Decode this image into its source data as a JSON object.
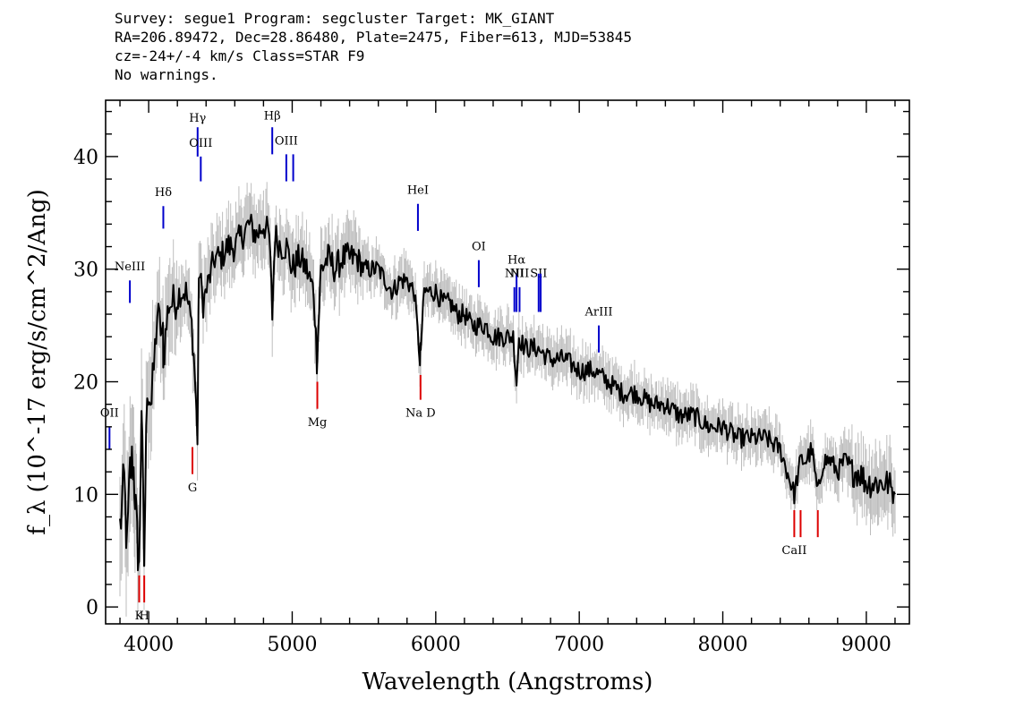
{
  "header": {
    "line1": "Survey: segue1 Program: segcluster Target: MK_GIANT",
    "line2": "RA=206.89472, Dec=28.86480, Plate=2475, Fiber=613, MJD=53845",
    "line3": "cz=-24+/-4 km/s Class=STAR F9",
    "line4": "No warnings."
  },
  "colors": {
    "spectrum": "#000000",
    "error_band": "#bdbdbd",
    "emission_line": "#0000cc",
    "absorption_line": "#dd0000",
    "frame": "#000000"
  },
  "chart_data": {
    "type": "line",
    "xlabel": "Wavelength (Angstroms)",
    "ylabel": "f_λ (10^-17 erg/s/cm^2/Ang)",
    "xlim": [
      3700,
      9300
    ],
    "ylim": [
      -1.5,
      45
    ],
    "xticks": [
      4000,
      5000,
      6000,
      7000,
      8000,
      9000
    ],
    "yticks": [
      0,
      10,
      20,
      30,
      40
    ],
    "grid": false,
    "series": [
      {
        "x": [
          3800,
          3830,
          3850,
          3870,
          3890,
          3905,
          3920,
          3933,
          3950,
          3968,
          3990,
          4020,
          4060,
          4100,
          4102,
          4140,
          4180,
          4220,
          4260,
          4300,
          4320,
          4340,
          4350,
          4380,
          4420,
          4460,
          4500,
          4550,
          4600,
          4650,
          4700,
          4750,
          4800,
          4840,
          4861,
          4880,
          4920,
          4960,
          5000,
          5050,
          5100,
          5150,
          5172,
          5183,
          5200,
          5250,
          5300,
          5350,
          5400,
          5450,
          5500,
          5550,
          5600,
          5650,
          5700,
          5750,
          5800,
          5850,
          5890,
          5896,
          5920,
          6000,
          6050,
          6100,
          6150,
          6200,
          6250,
          6300,
          6350,
          6400,
          6450,
          6500,
          6540,
          6563,
          6580,
          6620,
          6700,
          6800,
          6900,
          7000,
          7100,
          7200,
          7300,
          7400,
          7500,
          7600,
          7700,
          7800,
          7900,
          8000,
          8100,
          8200,
          8300,
          8400,
          8498,
          8542,
          8580,
          8620,
          8662,
          8700,
          8750,
          8800,
          8850,
          8900,
          8950,
          9000,
          9050,
          9100,
          9150,
          9200
        ],
        "values": [
          7,
          11,
          5,
          12,
          13,
          10,
          6,
          3,
          18,
          4,
          20,
          18,
          26,
          24,
          22,
          27,
          27,
          28,
          28,
          25,
          21,
          15,
          30,
          27,
          29,
          31,
          31,
          32,
          32,
          33,
          34,
          33,
          34,
          33,
          26,
          33,
          32,
          32,
          30,
          31,
          30,
          28,
          22,
          25,
          30,
          31,
          30,
          31,
          31,
          31,
          30,
          30,
          30,
          29,
          28,
          29,
          29,
          28,
          22,
          23,
          28,
          28,
          27,
          27,
          26,
          26,
          25,
          25,
          25,
          24,
          24,
          24,
          24,
          20,
          24,
          23,
          23,
          22,
          22,
          21,
          21,
          20,
          19,
          19,
          18,
          18,
          17,
          17,
          16,
          16,
          15,
          15,
          15,
          14,
          10,
          13,
          13,
          14,
          10,
          13,
          13,
          12,
          13,
          12,
          12,
          11,
          11,
          11,
          11,
          10
        ],
        "errors": [
          6,
          6,
          6,
          6,
          6,
          5,
          5,
          5,
          5,
          5,
          5,
          5,
          4,
          4,
          4,
          4,
          4,
          3,
          3,
          3,
          3,
          3,
          3,
          3,
          3,
          3,
          3,
          3,
          3,
          3,
          3,
          3,
          3,
          3,
          3,
          3,
          3,
          3,
          3,
          3,
          3,
          3,
          3,
          3,
          3,
          3,
          3,
          3,
          3,
          3,
          2,
          2,
          2,
          2,
          2,
          2,
          2,
          2,
          2,
          2,
          2,
          2,
          2,
          2,
          2,
          2,
          2,
          2,
          2,
          2,
          2,
          2,
          2,
          2,
          2,
          2,
          2,
          2,
          2,
          2,
          2,
          2,
          2,
          2,
          2,
          2,
          2,
          2,
          2,
          2,
          2,
          2,
          2,
          2,
          2,
          2,
          2,
          2,
          2,
          2,
          2,
          2,
          2,
          3,
          3,
          3,
          3,
          3,
          3,
          3
        ]
      }
    ],
    "emission_lines": [
      {
        "name": "OII",
        "label_tex": "OII",
        "wave": 3727,
        "y_top": 16,
        "y_bottom": 14,
        "label_y": 17.2
      },
      {
        "name": "NeIII",
        "label_tex": "NeIII",
        "wave": 3869,
        "y_top": 29,
        "y_bottom": 27,
        "label_y": 30.2
      },
      {
        "name": "H-delta",
        "label_tex": "Hδ",
        "wave": 4102,
        "y_top": 35.6,
        "y_bottom": 33.6,
        "label_y": 36.8
      },
      {
        "name": "H-gamma",
        "label_tex": "Hγ",
        "wave": 4341,
        "y_top": 42.6,
        "y_bottom": 40,
        "label_y": 43.4
      },
      {
        "name": "OIII",
        "label_tex": "OIII",
        "wave": 4363,
        "y_top": 40,
        "y_bottom": 37.8,
        "label_y": 41.2
      },
      {
        "name": "H-beta",
        "label_tex": "Hβ",
        "wave": 4861,
        "y_top": 42.6,
        "y_bottom": 40.2,
        "label_y": 43.6
      },
      {
        "name": "OIII",
        "label_tex": "OIII",
        "wave": 4959,
        "y_top": 40.2,
        "y_bottom": 37.8,
        "label_y": 41.4
      },
      {
        "name": "OIII",
        "label_tex": "",
        "wave": 5007,
        "y_top": 40.2,
        "y_bottom": 37.8,
        "label_y": 0
      },
      {
        "name": "HeI",
        "label_tex": "HeI",
        "wave": 5876,
        "y_top": 35.8,
        "y_bottom": 33.4,
        "label_y": 37
      },
      {
        "name": "OI",
        "label_tex": "OI",
        "wave": 6300,
        "y_top": 30.8,
        "y_bottom": 28.4,
        "label_y": 32
      },
      {
        "name": "NII",
        "label_tex": "NII",
        "wave": 6548,
        "y_top": 28.4,
        "y_bottom": 26.2,
        "label_y": 29.6
      },
      {
        "name": "H-alpha",
        "label_tex": "Hα",
        "wave": 6563,
        "y_top": 29.6,
        "y_bottom": 26.2,
        "label_y": 30.8
      },
      {
        "name": "NII",
        "label_tex": "NII",
        "wave": 6584,
        "y_top": 28.4,
        "y_bottom": 26.2,
        "label_y": 29.6
      },
      {
        "name": "SII",
        "label_tex": "SII",
        "wave": 6717,
        "y_top": 29.6,
        "y_bottom": 26.2,
        "label_y": 29.6
      },
      {
        "name": "SII",
        "label_tex": "",
        "wave": 6731,
        "y_top": 29.6,
        "y_bottom": 26.2,
        "label_y": 0
      },
      {
        "name": "ArIII",
        "label_tex": "ArIII",
        "wave": 7136,
        "y_top": 25,
        "y_bottom": 22.6,
        "label_y": 26.2
      }
    ],
    "absorption_lines": [
      {
        "name": "K",
        "label_tex": "K",
        "wave": 3934,
        "y_top": 2.8,
        "y_bottom": 0.4,
        "label_y": -0.8
      },
      {
        "name": "H",
        "label_tex": "H",
        "wave": 3969,
        "y_top": 2.8,
        "y_bottom": 0.4,
        "label_y": -0.8
      },
      {
        "name": "G",
        "label_tex": "G",
        "wave": 4305,
        "y_top": 14.2,
        "y_bottom": 11.8,
        "label_y": 10.6
      },
      {
        "name": "Mg",
        "label_tex": "Mg",
        "wave": 5175,
        "y_top": 20,
        "y_bottom": 17.6,
        "label_y": 16.4
      },
      {
        "name": "Na D",
        "label_tex": "Na D",
        "wave": 5894,
        "y_top": 20.6,
        "y_bottom": 18.4,
        "label_y": 17.2
      },
      {
        "name": "CaII",
        "label_tex": "CaII",
        "wave": 8498,
        "y_top": 8.6,
        "y_bottom": 6.2,
        "label_y": 5
      },
      {
        "name": "CaII",
        "label_tex": "",
        "wave": 8542,
        "y_top": 8.6,
        "y_bottom": 6.2,
        "label_y": 0
      },
      {
        "name": "CaII",
        "label_tex": "",
        "wave": 8662,
        "y_top": 8.6,
        "y_bottom": 6.2,
        "label_y": 0
      }
    ]
  }
}
